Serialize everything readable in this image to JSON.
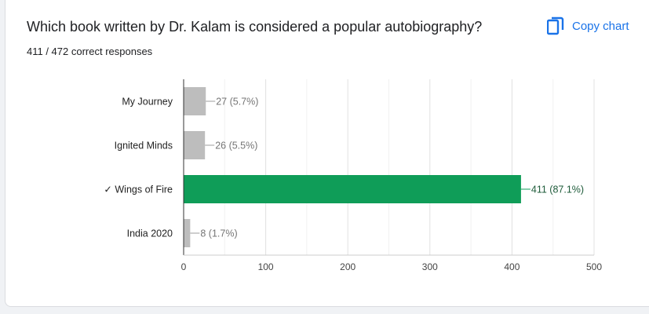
{
  "question": {
    "title": "Which book written by Dr. Kalam is considered a popular autobiography?",
    "summary": "411 / 472 correct responses"
  },
  "actions": {
    "copy_label": "Copy chart",
    "copy_icon": "copy-icon"
  },
  "colors": {
    "correct": "#0f9d58",
    "incorrect": "#bdbdbd",
    "accent": "#1a73e8"
  },
  "chart_data": {
    "type": "bar",
    "orientation": "horizontal",
    "categories": [
      "My Journey",
      "Ignited Minds",
      "✓ Wings of Fire",
      "India 2020"
    ],
    "values": [
      27,
      26,
      411,
      8
    ],
    "data_labels": [
      "27 (5.7%)",
      "26 (5.5%)",
      "411 (87.1%)",
      "8 (1.7%)"
    ],
    "correct": [
      false,
      false,
      true,
      false
    ],
    "xlim": [
      0,
      500
    ],
    "xticks": [
      0,
      100,
      200,
      300,
      400,
      500
    ],
    "grid": true,
    "legend": "none"
  }
}
